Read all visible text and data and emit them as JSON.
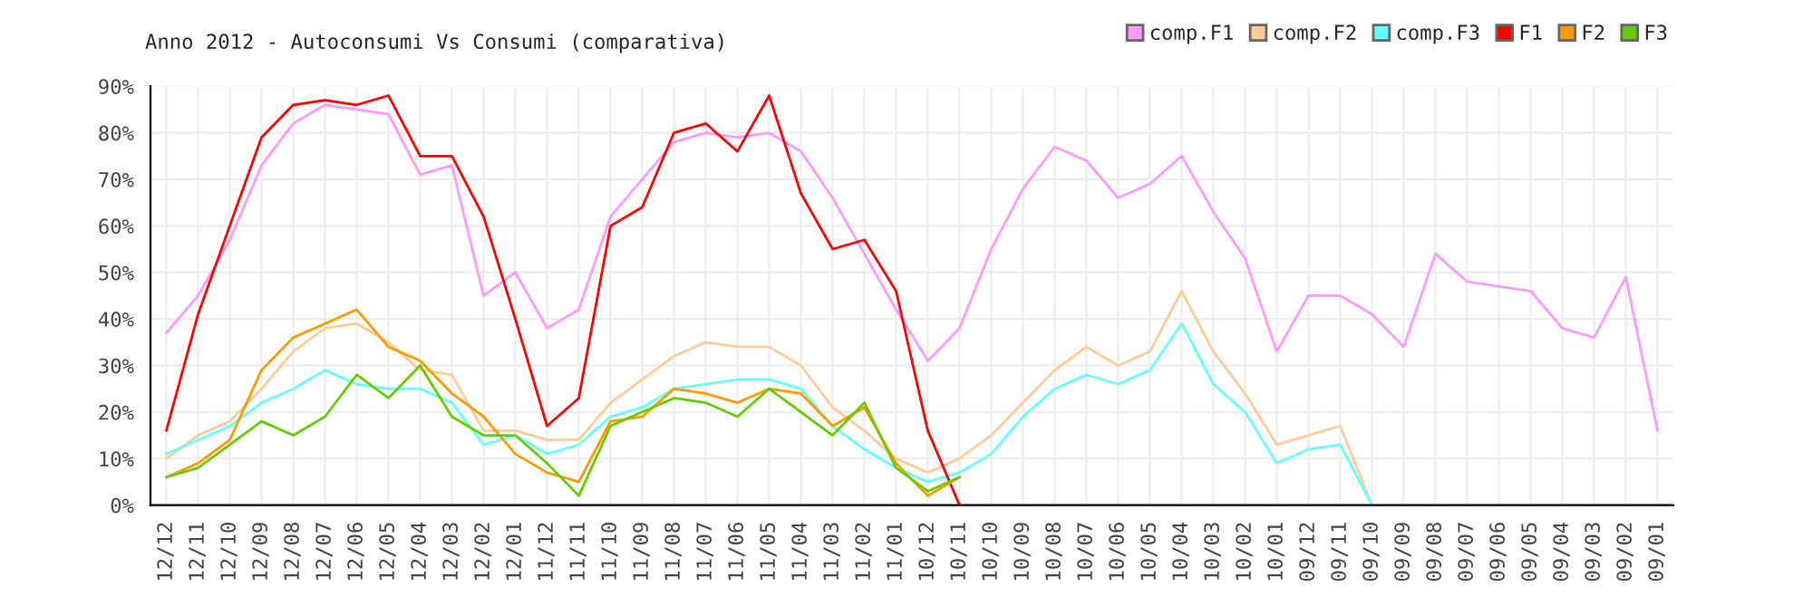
{
  "chart_data": {
    "type": "line",
    "title": "Anno 2012 - Autoconsumi Vs Consumi (comparativa)",
    "categories": [
      "12/12",
      "12/11",
      "12/10",
      "12/09",
      "12/08",
      "12/07",
      "12/06",
      "12/05",
      "12/04",
      "12/03",
      "12/02",
      "12/01",
      "11/12",
      "11/11",
      "11/10",
      "11/09",
      "11/08",
      "11/07",
      "11/06",
      "11/05",
      "11/04",
      "11/03",
      "11/02",
      "11/01",
      "10/12",
      "10/11",
      "10/10",
      "10/09",
      "10/08",
      "10/07",
      "10/06",
      "10/05",
      "10/04",
      "10/03",
      "10/02",
      "10/01",
      "09/12",
      "09/11",
      "09/10",
      "09/09",
      "09/08",
      "09/07",
      "09/06",
      "09/05",
      "09/04",
      "09/03",
      "09/02",
      "09/01"
    ],
    "series": [
      {
        "name": "comp.F1",
        "color": "#ff99ff",
        "values": [
          37,
          45,
          57,
          73,
          82,
          86,
          85,
          84,
          71,
          73,
          45,
          50,
          38,
          42,
          62,
          70,
          78,
          80,
          79,
          80,
          76,
          66,
          54,
          42,
          31,
          38,
          55,
          68,
          77,
          74,
          66,
          69,
          75,
          63,
          53,
          33,
          45,
          45,
          41,
          34,
          54,
          48,
          47,
          46,
          38,
          36,
          49,
          16
        ]
      },
      {
        "name": "comp.F2",
        "color": "#ffcc99",
        "values": [
          10,
          15,
          18,
          25,
          33,
          38,
          39,
          35,
          29,
          28,
          16,
          16,
          14,
          14,
          22,
          27,
          32,
          35,
          34,
          34,
          30,
          21,
          16,
          10,
          7,
          10,
          15,
          22,
          29,
          34,
          30,
          33,
          46,
          33,
          24,
          13,
          15,
          17,
          0,
          null,
          null,
          null,
          null,
          null,
          null,
          null,
          null,
          null
        ]
      },
      {
        "name": "comp.F3",
        "color": "#66ffff",
        "values": [
          11,
          14,
          17,
          22,
          25,
          29,
          26,
          25,
          25,
          22,
          13,
          15,
          11,
          13,
          19,
          21,
          25,
          26,
          27,
          27,
          25,
          17,
          12,
          8,
          5,
          7,
          11,
          19,
          25,
          28,
          26,
          29,
          39,
          26,
          20,
          9,
          12,
          13,
          0,
          null,
          null,
          null,
          null,
          null,
          null,
          null,
          null,
          null
        ]
      },
      {
        "name": "F1",
        "color": "#ff0000",
        "values": [
          16,
          41,
          60,
          79,
          86,
          87,
          86,
          88,
          75,
          75,
          62,
          40,
          17,
          23,
          60,
          64,
          80,
          82,
          76,
          88,
          67,
          55,
          57,
          46,
          16,
          0,
          null,
          null,
          null,
          null,
          null,
          null,
          null,
          null,
          null,
          null,
          null,
          null,
          null,
          null,
          null,
          null,
          null,
          null,
          null,
          null,
          null,
          null
        ]
      },
      {
        "name": "F2",
        "color": "#ff9900",
        "values": [
          6,
          9,
          14,
          29,
          36,
          39,
          42,
          34,
          31,
          24,
          19,
          11,
          7,
          5,
          18,
          19,
          25,
          24,
          22,
          25,
          24,
          17,
          21,
          9,
          2,
          6,
          null,
          null,
          null,
          null,
          null,
          null,
          null,
          null,
          null,
          null,
          null,
          null,
          null,
          null,
          null,
          null,
          null,
          null,
          null,
          null,
          null,
          null
        ]
      },
      {
        "name": "F3",
        "color": "#66cc00",
        "values": [
          6,
          8,
          13,
          18,
          15,
          19,
          28,
          23,
          30,
          19,
          15,
          15,
          9,
          2,
          17,
          20,
          23,
          22,
          19,
          25,
          20,
          15,
          22,
          8,
          3,
          6,
          null,
          null,
          null,
          null,
          null,
          null,
          null,
          null,
          null,
          null,
          null,
          null,
          null,
          null,
          null,
          null,
          null,
          null,
          null,
          null,
          null,
          null
        ]
      }
    ],
    "ylim": [
      0,
      90
    ],
    "yticks": [
      {
        "value": 0,
        "label": "0%"
      },
      {
        "value": 10,
        "label": "10%"
      },
      {
        "value": 20,
        "label": "20%"
      },
      {
        "value": 30,
        "label": "30%"
      },
      {
        "value": 40,
        "label": "40%"
      },
      {
        "value": 50,
        "label": "50%"
      },
      {
        "value": 60,
        "label": "60%"
      },
      {
        "value": 70,
        "label": "70%"
      },
      {
        "value": 80,
        "label": "80%"
      },
      {
        "value": 90,
        "label": "90%"
      }
    ],
    "grid": true,
    "legend": "top right",
    "marker": "none",
    "line_style": "solid"
  }
}
